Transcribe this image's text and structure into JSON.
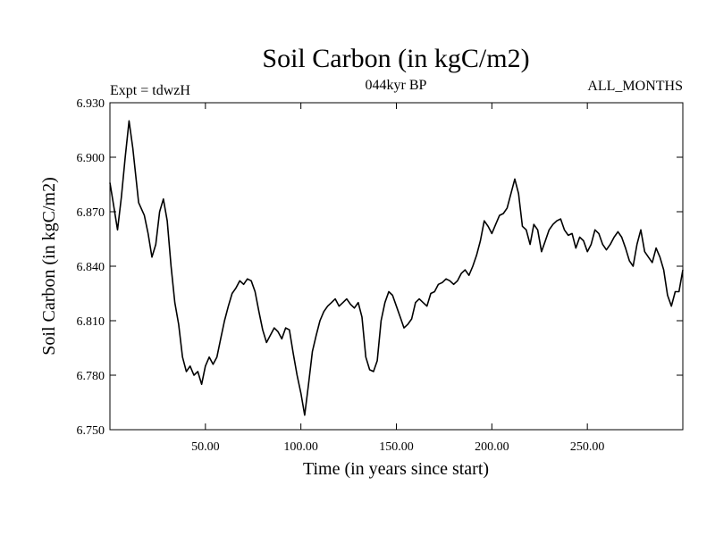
{
  "chart_data": {
    "type": "line",
    "title": "Soil Carbon (in kgC/m2)",
    "subtitle_left": "Expt = tdwzH",
    "subtitle_center": "044kyr BP",
    "subtitle_right": "ALL_MONTHS",
    "xlabel": "Time (in years since start)",
    "ylabel": "Soil Carbon (in kgC/m2)",
    "xlim": [
      0,
      300
    ],
    "ylim": [
      6.75,
      6.93
    ],
    "x_ticks": [
      50,
      100,
      150,
      200,
      250
    ],
    "x_tick_labels": [
      "50.00",
      "100.00",
      "150.00",
      "200.00",
      "250.00"
    ],
    "y_ticks": [
      6.75,
      6.78,
      6.81,
      6.84,
      6.87,
      6.9,
      6.93
    ],
    "y_tick_labels": [
      "6.750",
      "6.780",
      "6.810",
      "6.840",
      "6.870",
      "6.900",
      "6.930"
    ],
    "grid": false,
    "line_color": "#000000",
    "series": [
      {
        "x": [
          0,
          2,
          4,
          6,
          8,
          10,
          12,
          15,
          18,
          20,
          22,
          24,
          26,
          28,
          30,
          32,
          34,
          36,
          38,
          40,
          42,
          44,
          46,
          48,
          50,
          52,
          54,
          56,
          58,
          60,
          62,
          64,
          66,
          68,
          70,
          72,
          74,
          76,
          78,
          80,
          82,
          84,
          86,
          88,
          90,
          92,
          94,
          96,
          98,
          100,
          102,
          104,
          106,
          108,
          110,
          112,
          114,
          116,
          118,
          120,
          122,
          124,
          126,
          128,
          130,
          132,
          134,
          136,
          138,
          140,
          142,
          144,
          146,
          148,
          150,
          152,
          154,
          156,
          158,
          160,
          162,
          164,
          166,
          168,
          170,
          172,
          174,
          176,
          178,
          180,
          182,
          184,
          186,
          188,
          190,
          192,
          194,
          196,
          198,
          200,
          202,
          204,
          206,
          208,
          210,
          212,
          214,
          216,
          218,
          220,
          222,
          224,
          226,
          228,
          230,
          232,
          234,
          236,
          238,
          240,
          242,
          244,
          246,
          248,
          250,
          252,
          254,
          256,
          258,
          260,
          262,
          264,
          266,
          268,
          270,
          272,
          274,
          276,
          278,
          280,
          282,
          284,
          286,
          288,
          290,
          292,
          294,
          296,
          298,
          300
        ],
        "y": [
          6.886,
          6.873,
          6.86,
          6.878,
          6.9,
          6.92,
          6.905,
          6.875,
          6.868,
          6.858,
          6.845,
          6.852,
          6.87,
          6.877,
          6.865,
          6.84,
          6.82,
          6.808,
          6.79,
          6.782,
          6.785,
          6.78,
          6.782,
          6.775,
          6.785,
          6.79,
          6.786,
          6.79,
          6.8,
          6.81,
          6.818,
          6.825,
          6.828,
          6.832,
          6.83,
          6.833,
          6.832,
          6.826,
          6.815,
          6.805,
          6.798,
          6.802,
          6.806,
          6.804,
          6.8,
          6.806,
          6.805,
          6.792,
          6.78,
          6.77,
          6.758,
          6.775,
          6.793,
          6.802,
          6.81,
          6.815,
          6.818,
          6.82,
          6.822,
          6.818,
          6.82,
          6.822,
          6.819,
          6.817,
          6.82,
          6.812,
          6.79,
          6.783,
          6.782,
          6.788,
          6.81,
          6.82,
          6.826,
          6.824,
          6.818,
          6.812,
          6.806,
          6.808,
          6.811,
          6.82,
          6.822,
          6.82,
          6.818,
          6.825,
          6.826,
          6.83,
          6.831,
          6.833,
          6.832,
          6.83,
          6.832,
          6.836,
          6.838,
          6.835,
          6.84,
          6.846,
          6.854,
          6.865,
          6.862,
          6.858,
          6.863,
          6.868,
          6.869,
          6.872,
          6.88,
          6.888,
          6.88,
          6.862,
          6.86,
          6.852,
          6.863,
          6.86,
          6.848,
          6.854,
          6.86,
          6.863,
          6.865,
          6.866,
          6.86,
          6.857,
          6.858,
          6.85,
          6.856,
          6.854,
          6.848,
          6.852,
          6.86,
          6.858,
          6.852,
          6.849,
          6.852,
          6.856,
          6.859,
          6.856,
          6.85,
          6.843,
          6.84,
          6.852,
          6.86,
          6.848,
          6.845,
          6.842,
          6.85,
          6.845,
          6.838,
          6.824,
          6.818,
          6.826,
          6.826,
          6.838
        ]
      }
    ]
  }
}
